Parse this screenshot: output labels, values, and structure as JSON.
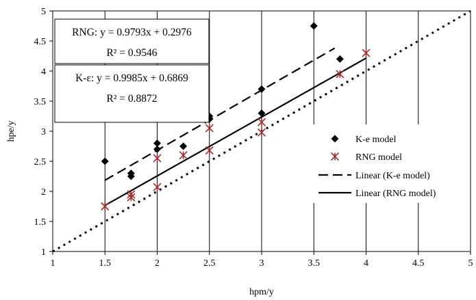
{
  "chart_data": {
    "type": "scatter",
    "xlabel": "hpm/y",
    "ylabel": "hpe/y",
    "xlim": [
      1,
      5
    ],
    "ylim": [
      1,
      5
    ],
    "xticks": [
      "1",
      "1.5",
      "2",
      "2.5",
      "3",
      "3.5",
      "4",
      "4.5",
      "5"
    ],
    "yticks": [
      "1",
      "1.5",
      "2",
      "2.5",
      "3",
      "3.5",
      "4",
      "4.5",
      "5"
    ],
    "grid": "vertical",
    "legend_position": "right",
    "series": [
      {
        "name": "K-e model",
        "marker": "diamond",
        "color": "#000000",
        "points": [
          [
            1.5,
            2.5
          ],
          [
            1.75,
            2.3
          ],
          [
            1.75,
            2.25
          ],
          [
            2.0,
            2.8
          ],
          [
            2.0,
            2.7
          ],
          [
            2.25,
            2.75
          ],
          [
            2.5,
            3.25
          ],
          [
            2.5,
            3.2
          ],
          [
            3.0,
            3.7
          ],
          [
            3.0,
            3.3
          ],
          [
            3.5,
            4.75
          ],
          [
            3.75,
            4.2
          ]
        ]
      },
      {
        "name": "RNG model",
        "marker": "star-x",
        "color": "#A52A2A",
        "points": [
          [
            1.5,
            1.75
          ],
          [
            1.75,
            1.95
          ],
          [
            1.75,
            1.9
          ],
          [
            2.0,
            2.55
          ],
          [
            2.0,
            2.07
          ],
          [
            2.25,
            2.6
          ],
          [
            2.5,
            3.05
          ],
          [
            2.5,
            2.68
          ],
          [
            3.0,
            3.15
          ],
          [
            3.0,
            2.98
          ],
          [
            3.75,
            3.95
          ],
          [
            4.0,
            4.3
          ]
        ]
      }
    ],
    "trendlines": [
      {
        "name": "Linear (K-e model)",
        "style": "dashed",
        "slope": 0.9985,
        "intercept": 0.6869,
        "x_range": [
          1.5,
          3.7
        ]
      },
      {
        "name": "Linear (RNG model)",
        "style": "solid",
        "slope": 0.9793,
        "intercept": 0.2976,
        "x_range": [
          1.5,
          4.0
        ]
      },
      {
        "name": "",
        "style": "dotted",
        "slope": 1.0,
        "intercept": 0.0,
        "x_range": [
          1.0,
          5.0
        ]
      }
    ],
    "annotations": [
      {
        "line1": "RNG: y = 0.9793x + 0.2976",
        "line2": "R² = 0.9546"
      },
      {
        "line1": "K-ε: y = 0.9985x + 0.6869",
        "line2": "R² = 0.8872"
      }
    ]
  }
}
